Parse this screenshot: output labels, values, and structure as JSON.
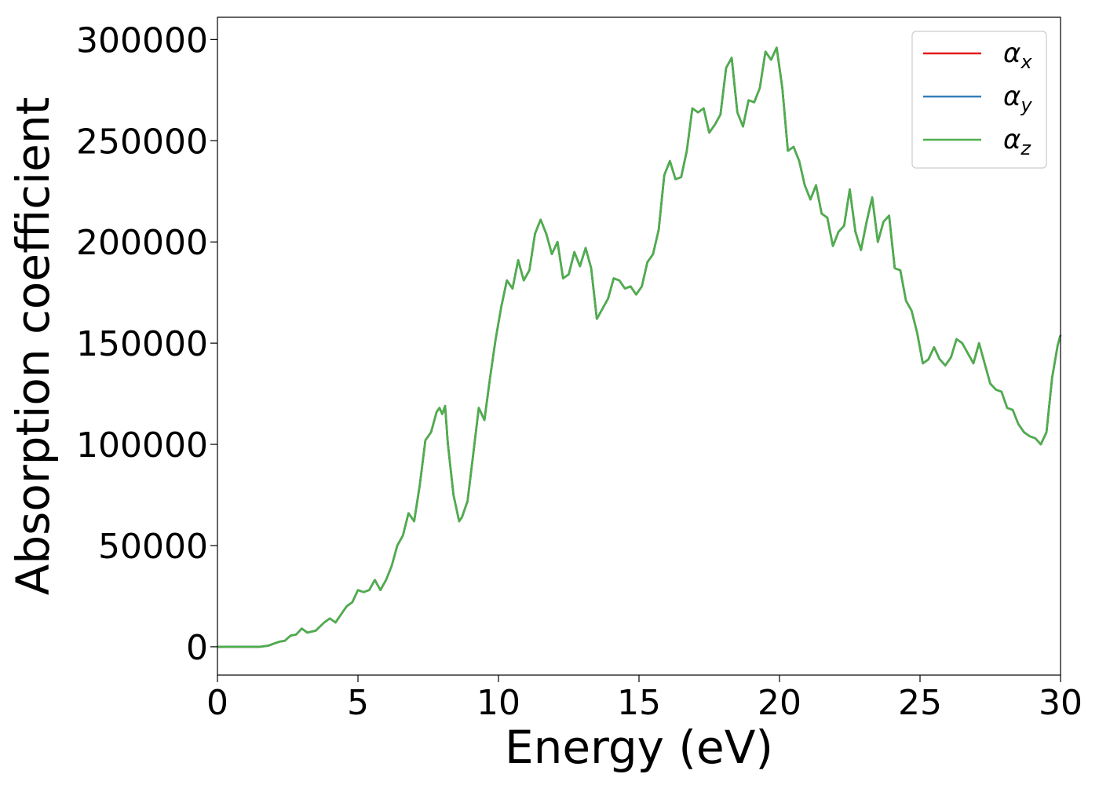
{
  "chart_data": {
    "type": "line",
    "xlabel": "Energy (eV)",
    "ylabel": "Absorption coefficient",
    "xlim": [
      0,
      30
    ],
    "ylim": [
      -14000,
      311000
    ],
    "xticks": [
      0,
      5,
      10,
      15,
      20,
      25,
      30
    ],
    "yticks": [
      0,
      50000,
      100000,
      150000,
      200000,
      250000,
      300000
    ],
    "grid": false,
    "legend_position": "top-right",
    "series": [
      {
        "name": "α",
        "sub": "x",
        "color": "#e41a1c"
      },
      {
        "name": "α",
        "sub": "y",
        "color": "#377eb8"
      },
      {
        "name": "α",
        "sub": "z",
        "color": "#4daf4a"
      }
    ],
    "x": [
      0,
      0.5,
      1.0,
      1.5,
      1.8,
      2.0,
      2.2,
      2.4,
      2.6,
      2.8,
      3.0,
      3.2,
      3.5,
      3.8,
      4.0,
      4.2,
      4.4,
      4.6,
      4.8,
      5.0,
      5.2,
      5.4,
      5.6,
      5.8,
      6.0,
      6.2,
      6.4,
      6.6,
      6.8,
      7.0,
      7.2,
      7.4,
      7.6,
      7.8,
      7.9,
      8.0,
      8.1,
      8.2,
      8.4,
      8.6,
      8.7,
      8.9,
      9.1,
      9.3,
      9.5,
      9.7,
      9.9,
      10.1,
      10.3,
      10.5,
      10.7,
      10.9,
      11.1,
      11.3,
      11.5,
      11.7,
      11.9,
      12.1,
      12.3,
      12.5,
      12.7,
      12.9,
      13.1,
      13.3,
      13.5,
      13.7,
      13.9,
      14.1,
      14.3,
      14.5,
      14.7,
      14.9,
      15.1,
      15.3,
      15.5,
      15.7,
      15.9,
      16.1,
      16.3,
      16.5,
      16.7,
      16.9,
      17.1,
      17.3,
      17.5,
      17.7,
      17.9,
      18.1,
      18.3,
      18.5,
      18.7,
      18.9,
      19.1,
      19.3,
      19.5,
      19.7,
      19.9,
      20.1,
      20.3,
      20.5,
      20.7,
      20.9,
      21.1,
      21.3,
      21.5,
      21.7,
      21.9,
      22.1,
      22.3,
      22.5,
      22.7,
      22.9,
      23.1,
      23.3,
      23.5,
      23.7,
      23.9,
      24.1,
      24.3,
      24.5,
      24.7,
      24.9,
      25.1,
      25.3,
      25.5,
      25.7,
      25.9,
      26.1,
      26.3,
      26.5,
      26.7,
      26.9,
      27.1,
      27.3,
      27.5,
      27.7,
      27.9,
      28.1,
      28.3,
      28.5,
      28.7,
      28.9,
      29.1,
      29.3,
      29.5,
      29.7,
      29.9,
      30.0
    ],
    "y": [
      0,
      0,
      0,
      0,
      500,
      1500,
      2500,
      3000,
      5500,
      6000,
      9000,
      7000,
      8000,
      12000,
      14000,
      12000,
      16000,
      20000,
      22000,
      28000,
      27000,
      28000,
      33000,
      28000,
      33000,
      40000,
      50000,
      55000,
      66000,
      62000,
      80000,
      102000,
      106000,
      116000,
      118000,
      115000,
      119000,
      100000,
      75000,
      62000,
      64000,
      72000,
      95000,
      118000,
      112000,
      133000,
      152000,
      168000,
      181000,
      177000,
      191000,
      181000,
      186000,
      204000,
      211000,
      204000,
      194000,
      200000,
      182000,
      184000,
      195000,
      188000,
      197000,
      187000,
      162000,
      167000,
      172000,
      182000,
      181000,
      177000,
      178000,
      174000,
      178000,
      190000,
      194000,
      206000,
      233000,
      240000,
      231000,
      232000,
      245000,
      266000,
      264000,
      266000,
      254000,
      258000,
      263000,
      286000,
      291000,
      264000,
      257000,
      270000,
      269000,
      276000,
      294000,
      290000,
      296000,
      276000,
      245000,
      247000,
      240000,
      228000,
      221000,
      228000,
      214000,
      212000,
      198000,
      205000,
      208000,
      226000,
      205000,
      196000,
      210000,
      222000,
      200000,
      210000,
      213000,
      187000,
      186000,
      171000,
      166000,
      155000,
      140000,
      142000,
      148000,
      142000,
      139000,
      143000,
      152000,
      150000,
      145000,
      140000,
      150000,
      140000,
      130000,
      127000,
      126000,
      118000,
      117000,
      110000,
      106000,
      104000,
      103000,
      100000,
      106000,
      133000,
      149000,
      154000
    ]
  }
}
